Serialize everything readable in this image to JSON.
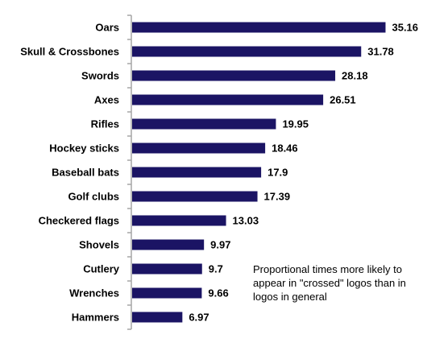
{
  "chart_data": {
    "type": "bar",
    "orientation": "horizontal",
    "categories": [
      "Oars",
      "Skull & Crossbones",
      "Swords",
      "Axes",
      "Rifles",
      "Hockey sticks",
      "Baseball bats",
      "Golf clubs",
      "Checkered flags",
      "Shovels",
      "Cutlery",
      "Wrenches",
      "Hammers"
    ],
    "values": [
      35.16,
      31.78,
      28.18,
      26.51,
      19.95,
      18.46,
      17.9,
      17.39,
      13.03,
      9.97,
      9.7,
      9.66,
      6.97
    ],
    "value_labels": [
      "35.16",
      "31.78",
      "28.18",
      "26.51",
      "19.95",
      "18.46",
      "17.9",
      "17.39",
      "13.03",
      "9.97",
      "9.7",
      "9.66",
      "6.97"
    ],
    "annotation": "Proportional times more likely to appear in \"crossed\" logos than in logos in general",
    "title": "",
    "xlabel": "",
    "ylabel": "",
    "xlim": [
      0,
      36
    ],
    "grid": false,
    "bar_color": "#1b1464",
    "axis_color": "#a6a6a6"
  }
}
